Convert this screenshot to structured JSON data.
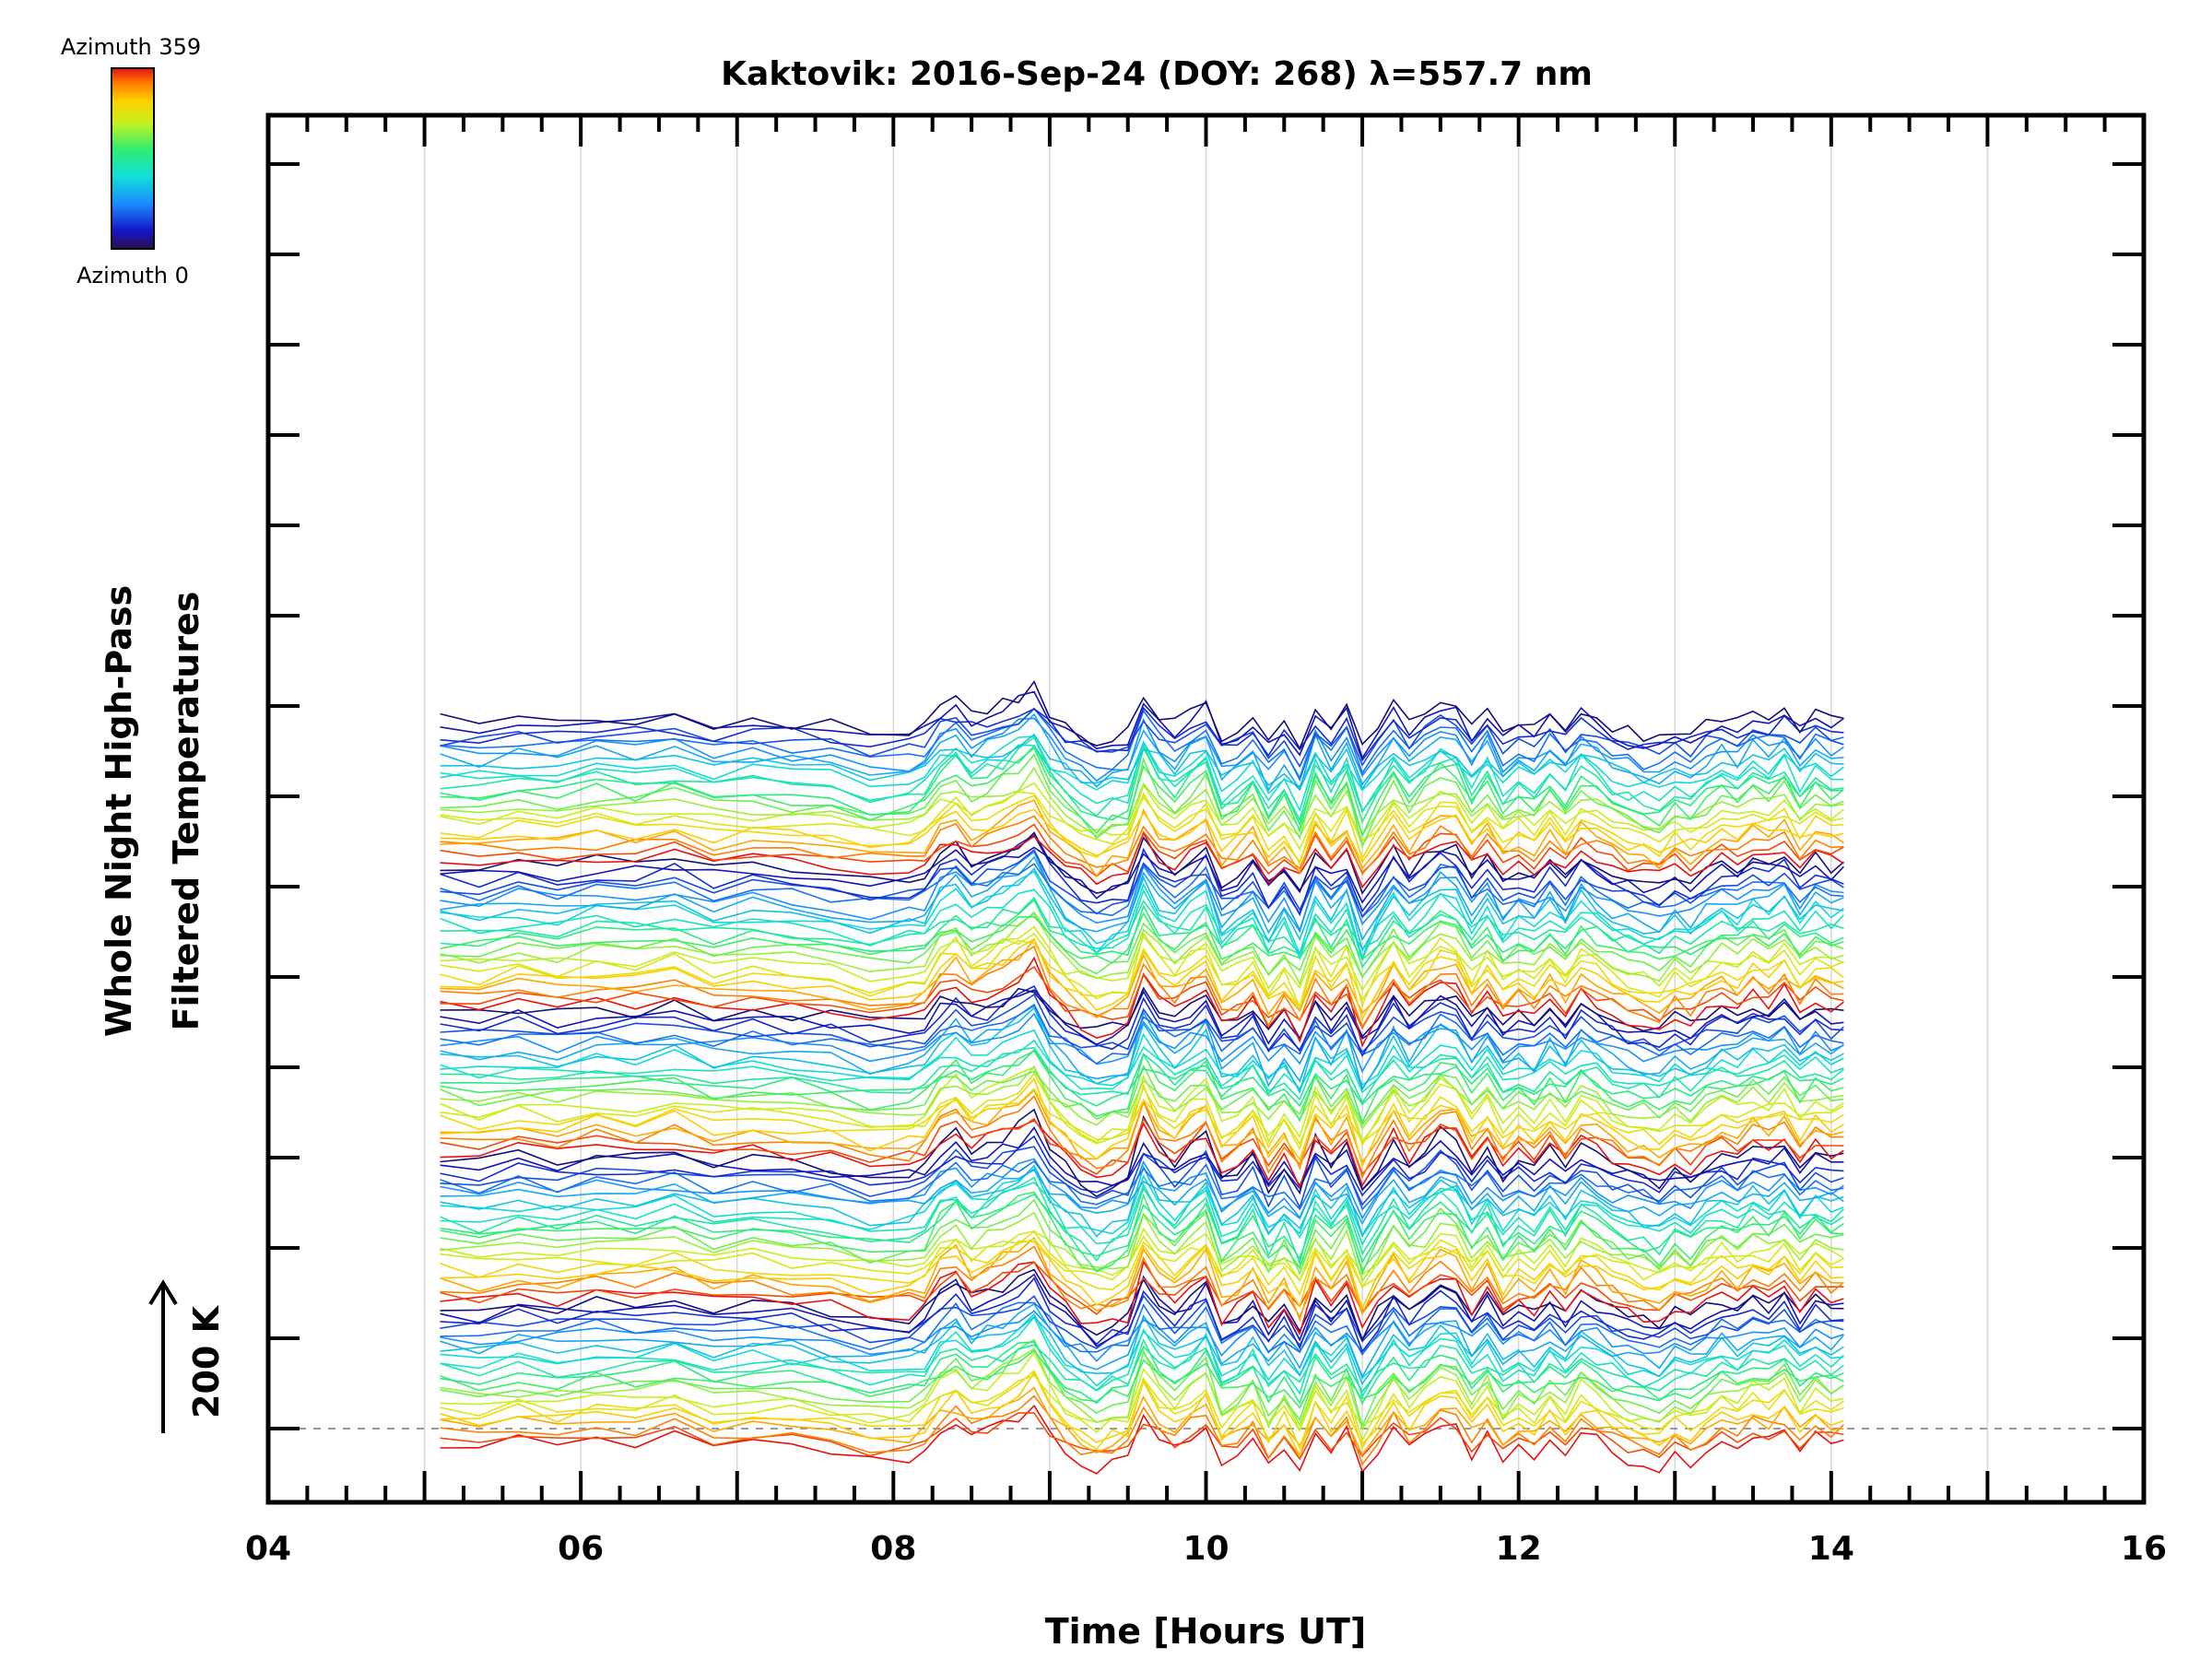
{
  "chart_data": {
    "type": "line",
    "title": "Kaktovik: 2016-Sep-24 (DOY: 268) λ=557.7 nm",
    "xlabel": "Time [Hours UT]",
    "ylabel_line1": "Whole Night High-Pass",
    "ylabel_line2": "Filtered Temperatures",
    "xlim": [
      4,
      16
    ],
    "x_major_ticks": [
      4,
      6,
      8,
      10,
      12,
      14,
      16
    ],
    "x_tick_labels": [
      "04",
      "06",
      "08",
      "10",
      "12",
      "14",
      "16"
    ],
    "x_minor_step": 0.25,
    "gridlines_x": [
      5,
      6,
      7,
      8,
      9,
      10,
      11,
      12,
      13,
      14,
      15
    ],
    "y_tick_count": 15,
    "scale_bar_label": "200 K",
    "colorbar": {
      "top_label": "Azimuth 359",
      "bottom_label": "Azimuth 0",
      "colormap": "rainbow"
    },
    "series_description": {
      "n_traces": 115,
      "time_start": 5.1,
      "time_end": 14.08,
      "sample_times": [
        5.1,
        5.35,
        5.6,
        5.85,
        6.1,
        6.35,
        6.6,
        6.85,
        7.1,
        7.35,
        7.6,
        7.85,
        8.1,
        8.2,
        8.3,
        8.4,
        8.5,
        8.6,
        8.7,
        8.8,
        8.9,
        9.0,
        9.1,
        9.2,
        9.3,
        9.4,
        9.5,
        9.6,
        9.7,
        9.8,
        9.9,
        10.0,
        10.1,
        10.2,
        10.3,
        10.4,
        10.5,
        10.6,
        10.7,
        10.8,
        10.9,
        11.0,
        11.1,
        11.2,
        11.3,
        11.4,
        11.5,
        11.6,
        11.7,
        11.8,
        11.9,
        12.0,
        12.1,
        12.2,
        12.3,
        12.4,
        12.5,
        12.6,
        12.7,
        12.8,
        12.9,
        13.0,
        13.1,
        13.2,
        13.3,
        13.4,
        13.5,
        13.6,
        13.7,
        13.8,
        13.9,
        14.0,
        14.08
      ],
      "common_shape_K": [
        0,
        -4,
        3,
        -2,
        5,
        2,
        8,
        -3,
        1,
        -2,
        -6,
        -14,
        -12,
        -6,
        14,
        22,
        6,
        12,
        18,
        26,
        36,
        10,
        -6,
        -16,
        -24,
        -18,
        -14,
        28,
        6,
        -4,
        8,
        20,
        -16,
        -8,
        6,
        -22,
        -4,
        -26,
        14,
        -6,
        12,
        -28,
        -6,
        16,
        -4,
        8,
        22,
        18,
        -8,
        10,
        -14,
        -2,
        -10,
        6,
        -8,
        12,
        4,
        -6,
        -12,
        -16,
        -20,
        -8,
        -14,
        -4,
        6,
        -2,
        10,
        4,
        14,
        -6,
        8,
        0,
        2
      ]
    }
  }
}
